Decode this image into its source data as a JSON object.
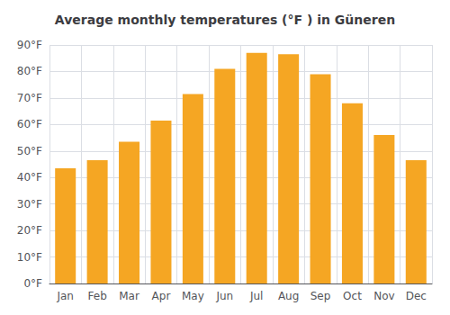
{
  "chart_data": {
    "type": "bar",
    "title": "Average monthly temperatures (°F ) in Güneren",
    "categories": [
      "Jan",
      "Feb",
      "Mar",
      "Apr",
      "May",
      "Jun",
      "Jul",
      "Aug",
      "Sep",
      "Oct",
      "Nov",
      "Dec"
    ],
    "values": [
      43.5,
      46.5,
      53.5,
      61.5,
      71.5,
      81.0,
      87.0,
      86.5,
      79.0,
      68.0,
      56.0,
      46.5
    ],
    "color": "#F5A623",
    "ylim": [
      0,
      90
    ],
    "yticks": [
      {
        "value": 0,
        "label": "0°F"
      },
      {
        "value": 10,
        "label": "10°F"
      },
      {
        "value": 20,
        "label": "20°F"
      },
      {
        "value": 30,
        "label": "30°F"
      },
      {
        "value": 40,
        "label": "40°F"
      },
      {
        "value": 50,
        "label": "50°F"
      },
      {
        "value": 60,
        "label": "60°F"
      },
      {
        "value": 70,
        "label": "70°F"
      },
      {
        "value": 80,
        "label": "80°F"
      },
      {
        "value": 90,
        "label": "90°F"
      }
    ],
    "grid": true
  }
}
